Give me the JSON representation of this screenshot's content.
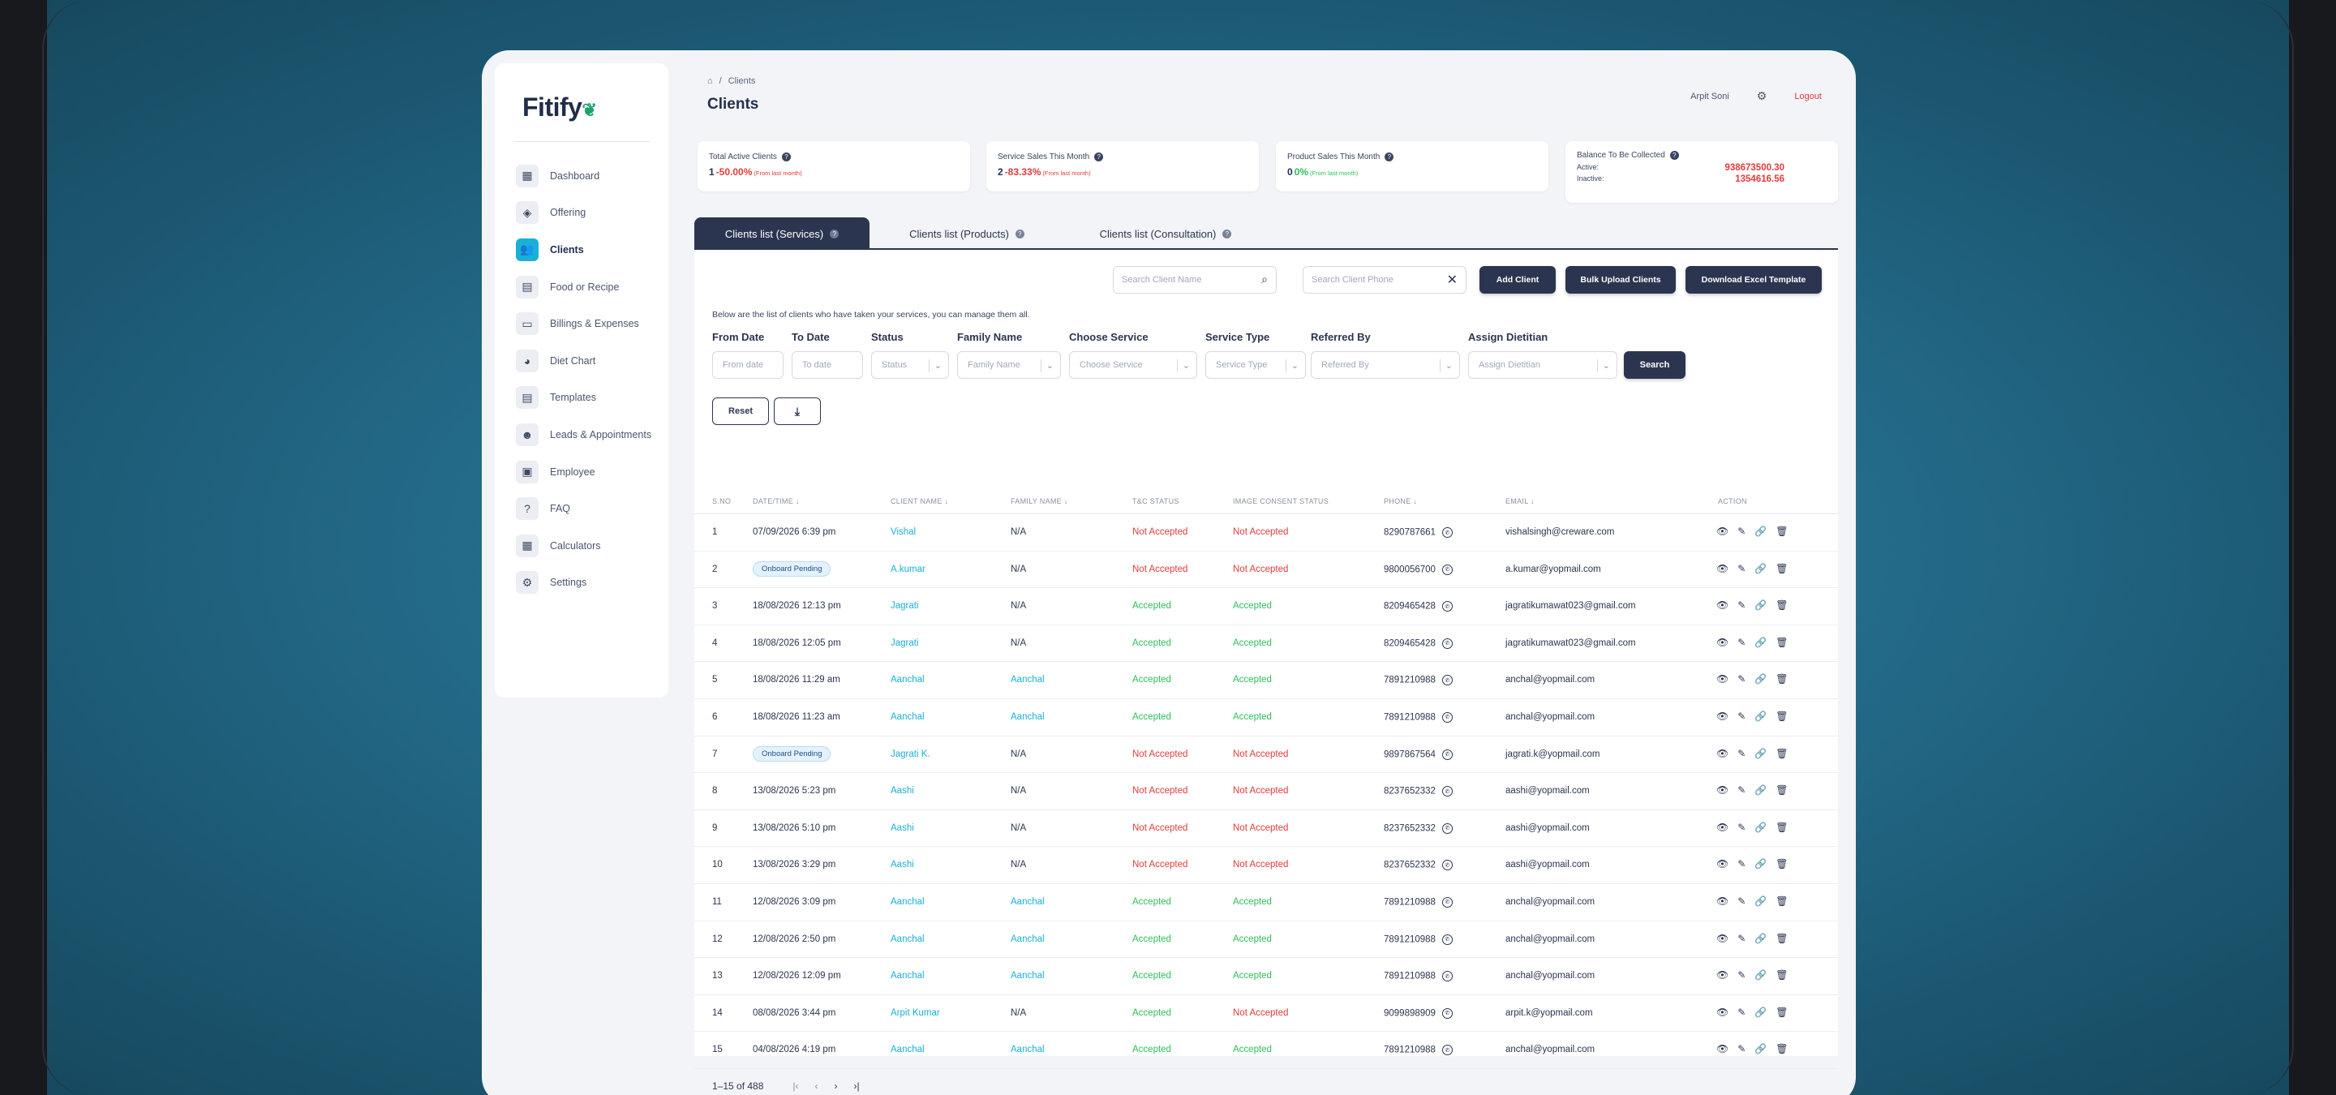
{
  "app": {
    "logo": "Fitify"
  },
  "sidebar": {
    "items": [
      {
        "label": "Dashboard",
        "icon": "dashboard-icon"
      },
      {
        "label": "Offering",
        "icon": "tag-icon"
      },
      {
        "label": "Clients",
        "icon": "users-icon"
      },
      {
        "label": "Food or Recipe",
        "icon": "recipe-icon"
      },
      {
        "label": "Billings & Expenses",
        "icon": "card-icon"
      },
      {
        "label": "Diet Chart",
        "icon": "pie-icon"
      },
      {
        "label": "Templates",
        "icon": "document-icon"
      },
      {
        "label": "Leads & Appointments",
        "icon": "lead-icon"
      },
      {
        "label": "Employee",
        "icon": "briefcase-icon"
      },
      {
        "label": "FAQ",
        "icon": "faq-icon"
      },
      {
        "label": "Calculators",
        "icon": "calculator-icon"
      },
      {
        "label": "Settings",
        "icon": "gear-icon"
      }
    ]
  },
  "header": {
    "breadcrumb": "Clients",
    "title": "Clients",
    "user": "Arpit Soni",
    "logout": "Logout"
  },
  "stats": {
    "active": {
      "title": "Total Active Clients",
      "value": "1",
      "change": "-50.00%",
      "note": "(From last month)"
    },
    "service": {
      "title": "Service Sales This Month",
      "value": "2",
      "change": "-83.33%",
      "note": "(From last month)"
    },
    "product": {
      "title": "Product Sales This Month",
      "value": "0",
      "change": "0%",
      "note": "(From last month)"
    },
    "balance": {
      "title": "Balance To Be Collected",
      "active_label": "Active:",
      "active_value": "938673500.30",
      "inactive_label": "Inactive:",
      "inactive_value": "1354616.56"
    }
  },
  "tabs": [
    "Clients list (Services)",
    "Clients list (Products)",
    "Clients list (Consultation)"
  ],
  "toolbar": {
    "search_name": "Search Client Name",
    "search_phone": "Search Client Phone",
    "add": "Add Client",
    "bulk": "Bulk Upload Clients",
    "download": "Download Excel Template"
  },
  "description": "Below are the list of clients who have taken your services, you can manage them all.",
  "filters": {
    "from": {
      "label": "From Date",
      "placeholder": "From date"
    },
    "to": {
      "label": "To Date",
      "placeholder": "To date"
    },
    "status": {
      "label": "Status",
      "placeholder": "Status"
    },
    "family": {
      "label": "Family Name",
      "placeholder": "Family Name"
    },
    "service": {
      "label": "Choose Service",
      "placeholder": "Choose Service"
    },
    "stype": {
      "label": "Service Type",
      "placeholder": "Service Type"
    },
    "referred": {
      "label": "Referred By",
      "placeholder": "Referred By"
    },
    "dietitian": {
      "label": "Assign Dietitian",
      "placeholder": "Assign Dietitian"
    },
    "search": "Search",
    "reset": "Reset"
  },
  "table": {
    "headers": [
      "S.NO",
      "DATE/TIME",
      "CLIENT NAME",
      "FAMILY NAME",
      "T&C STATUS",
      "IMAGE CONSENT STATUS",
      "PHONE",
      "EMAIL",
      "ACTION"
    ],
    "rows": [
      {
        "n": "1",
        "date": "07/09/2026 6:39 pm",
        "name": "Vishal",
        "family": "N/A",
        "tc": "Not Accepted",
        "img": "Not Accepted",
        "phone": "8290787661",
        "email": "vishalsingh@creware.com"
      },
      {
        "n": "2",
        "date": "Onboard Pending",
        "name": "A.kumar",
        "family": "N/A",
        "tc": "Not Accepted",
        "img": "Not Accepted",
        "phone": "9800056700",
        "email": "a.kumar@yopmail.com"
      },
      {
        "n": "3",
        "date": "18/08/2026 12:13 pm",
        "name": "Jagrati",
        "family": "N/A",
        "tc": "Accepted",
        "img": "Accepted",
        "phone": "8209465428",
        "email": "jagratikumawat023@gmail.com"
      },
      {
        "n": "4",
        "date": "18/08/2026 12:05 pm",
        "name": "Jagrati",
        "family": "N/A",
        "tc": "Accepted",
        "img": "Accepted",
        "phone": "8209465428",
        "email": "jagratikumawat023@gmail.com"
      },
      {
        "n": "5",
        "date": "18/08/2026 11:29 am",
        "name": "Aanchal",
        "family": "Aanchal",
        "tc": "Accepted",
        "img": "Accepted",
        "phone": "7891210988",
        "email": "anchal@yopmail.com"
      },
      {
        "n": "6",
        "date": "18/08/2026 11:23 am",
        "name": "Aanchal",
        "family": "Aanchal",
        "tc": "Accepted",
        "img": "Accepted",
        "phone": "7891210988",
        "email": "anchal@yopmail.com"
      },
      {
        "n": "7",
        "date": "Onboard Pending",
        "name": "Jagrati K.",
        "family": "N/A",
        "tc": "Not Accepted",
        "img": "Not Accepted",
        "phone": "9897867564",
        "email": "jagrati.k@yopmail.com"
      },
      {
        "n": "8",
        "date": "13/08/2026 5:23 pm",
        "name": "Aashi",
        "family": "N/A",
        "tc": "Not Accepted",
        "img": "Not Accepted",
        "phone": "8237652332",
        "email": "aashi@yopmail.com"
      },
      {
        "n": "9",
        "date": "13/08/2026 5:10 pm",
        "name": "Aashi",
        "family": "N/A",
        "tc": "Not Accepted",
        "img": "Not Accepted",
        "phone": "8237652332",
        "email": "aashi@yopmail.com"
      },
      {
        "n": "10",
        "date": "13/08/2026 3:29 pm",
        "name": "Aashi",
        "family": "N/A",
        "tc": "Not Accepted",
        "img": "Not Accepted",
        "phone": "8237652332",
        "email": "aashi@yopmail.com"
      },
      {
        "n": "11",
        "date": "12/08/2026 3:09 pm",
        "name": "Aanchal",
        "family": "Aanchal",
        "tc": "Accepted",
        "img": "Accepted",
        "phone": "7891210988",
        "email": "anchal@yopmail.com"
      },
      {
        "n": "12",
        "date": "12/08/2026 2:50 pm",
        "name": "Aanchal",
        "family": "Aanchal",
        "tc": "Accepted",
        "img": "Accepted",
        "phone": "7891210988",
        "email": "anchal@yopmail.com"
      },
      {
        "n": "13",
        "date": "12/08/2026 12:09 pm",
        "name": "Aanchal",
        "family": "Aanchal",
        "tc": "Accepted",
        "img": "Accepted",
        "phone": "7891210988",
        "email": "anchal@yopmail.com"
      },
      {
        "n": "14",
        "date": "08/08/2026 3:44 pm",
        "name": "Arpit Kumar",
        "family": "N/A",
        "tc": "Accepted",
        "img": "Not Accepted",
        "phone": "9099898909",
        "email": "arpit.k@yopmail.com"
      },
      {
        "n": "15",
        "date": "04/08/2026 4:19 pm",
        "name": "Aanchal",
        "family": "Aanchal",
        "tc": "Accepted",
        "img": "Accepted",
        "phone": "7891210988",
        "email": "anchal@yopmail.com"
      }
    ]
  },
  "pagination": {
    "range": "1–15 of 488"
  },
  "colors": {
    "primary": "#2c3550",
    "accent": "#1ab0d6",
    "danger": "#e23b3b",
    "success": "#2dbf5a"
  }
}
